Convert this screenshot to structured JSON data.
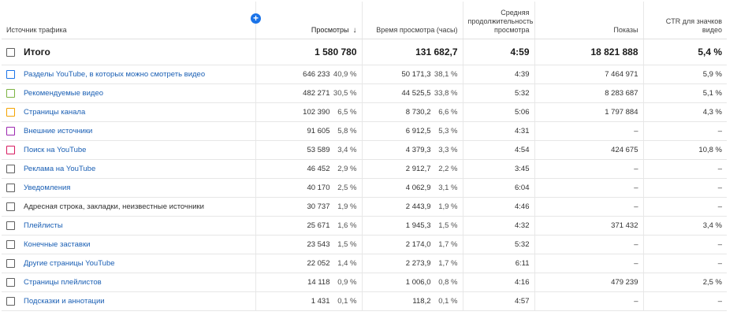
{
  "header": {
    "source": "Источник трафика",
    "views": "Просмотры",
    "sort_icon": "↓",
    "watch_time": "Время просмотра (часы)",
    "avg_duration": "Средняя продолжительность просмотра",
    "impressions": "Показы",
    "ctr": "CTR для значков видео",
    "add_button": "+"
  },
  "total": {
    "label": "Итого",
    "views": "1 580 780",
    "watch_time": "131 682,7",
    "avg_duration": "4:59",
    "impressions": "18 821 888",
    "ctr": "5,4 %"
  },
  "rows": [
    {
      "label": "Разделы YouTube, в которых можно смотреть видео",
      "link": true,
      "checkbox_color": "#1a73e8",
      "views": "646 233",
      "views_pct": "40,9 %",
      "time": "50 171,3",
      "time_pct": "38,1 %",
      "avg": "4:39",
      "impr": "7 464 971",
      "ctr": "5,9 %"
    },
    {
      "label": "Рекомендуемые видео",
      "link": true,
      "checkbox_color": "#7cb342",
      "views": "482 271",
      "views_pct": "30,5 %",
      "time": "44 525,5",
      "time_pct": "33,8 %",
      "avg": "5:32",
      "impr": "8 283 687",
      "ctr": "5,1 %"
    },
    {
      "label": "Страницы канала",
      "link": true,
      "checkbox_color": "#f4a300",
      "views": "102 390",
      "views_pct": "6,5 %",
      "time": "8 730,2",
      "time_pct": "6,6 %",
      "avg": "5:06",
      "impr": "1 797 884",
      "ctr": "4,3 %"
    },
    {
      "label": "Внешние источники",
      "link": true,
      "checkbox_color": "#9c27b0",
      "views": "91 605",
      "views_pct": "5,8 %",
      "time": "6 912,5",
      "time_pct": "5,3 %",
      "avg": "4:31",
      "impr": "–",
      "ctr": "–"
    },
    {
      "label": "Поиск на YouTube",
      "link": true,
      "checkbox_color": "#d81b60",
      "views": "53 589",
      "views_pct": "3,4 %",
      "time": "4 379,3",
      "time_pct": "3,3 %",
      "avg": "4:54",
      "impr": "424 675",
      "ctr": "10,8 %"
    },
    {
      "label": "Реклама на YouTube",
      "link": true,
      "checkbox_color": "#5f5f5f",
      "views": "46 452",
      "views_pct": "2,9 %",
      "time": "2 912,7",
      "time_pct": "2,2 %",
      "avg": "3:45",
      "impr": "–",
      "ctr": "–"
    },
    {
      "label": "Уведомления",
      "link": true,
      "checkbox_color": "#5f5f5f",
      "views": "40 170",
      "views_pct": "2,5 %",
      "time": "4 062,9",
      "time_pct": "3,1 %",
      "avg": "6:04",
      "impr": "–",
      "ctr": "–"
    },
    {
      "label": "Адресная строка, закладки, неизвестные источники",
      "link": false,
      "checkbox_color": "#5f5f5f",
      "views": "30 737",
      "views_pct": "1,9 %",
      "time": "2 443,9",
      "time_pct": "1,9 %",
      "avg": "4:46",
      "impr": "–",
      "ctr": "–"
    },
    {
      "label": "Плейлисты",
      "link": true,
      "checkbox_color": "#5f5f5f",
      "views": "25 671",
      "views_pct": "1,6 %",
      "time": "1 945,3",
      "time_pct": "1,5 %",
      "avg": "4:32",
      "impr": "371 432",
      "ctr": "3,4 %"
    },
    {
      "label": "Конечные заставки",
      "link": true,
      "checkbox_color": "#5f5f5f",
      "views": "23 543",
      "views_pct": "1,5 %",
      "time": "2 174,0",
      "time_pct": "1,7 %",
      "avg": "5:32",
      "impr": "–",
      "ctr": "–"
    },
    {
      "label": "Другие страницы YouTube",
      "link": true,
      "checkbox_color": "#5f5f5f",
      "views": "22 052",
      "views_pct": "1,4 %",
      "time": "2 273,9",
      "time_pct": "1,7 %",
      "avg": "6:11",
      "impr": "–",
      "ctr": "–"
    },
    {
      "label": "Страницы плейлистов",
      "link": true,
      "checkbox_color": "#5f5f5f",
      "views": "14 118",
      "views_pct": "0,9 %",
      "time": "1 006,0",
      "time_pct": "0,8 %",
      "avg": "4:16",
      "impr": "479 239",
      "ctr": "2,5 %"
    },
    {
      "label": "Подсказки и аннотации",
      "link": true,
      "checkbox_color": "#5f5f5f",
      "views": "1 431",
      "views_pct": "0,1 %",
      "time": "118,2",
      "time_pct": "0,1 %",
      "avg": "4:57",
      "impr": "–",
      "ctr": "–"
    }
  ]
}
